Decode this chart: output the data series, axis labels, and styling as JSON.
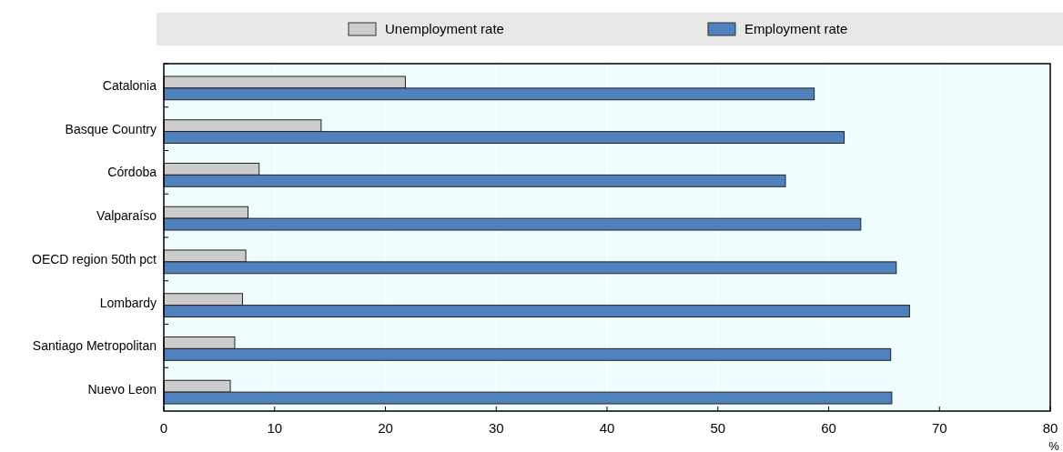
{
  "chart_data": {
    "type": "bar",
    "orientation": "horizontal",
    "xlabel": "%",
    "categories": [
      "Catalonia",
      "Basque Country",
      "Córdoba",
      "Valparaíso",
      "OECD region 50th pct",
      "Lombardy",
      "Santiago Metropolitan",
      "Nuevo Leon"
    ],
    "series": [
      {
        "name": "Unemployment rate",
        "color": "#cccccc",
        "values": [
          21.8,
          14.2,
          8.6,
          7.6,
          7.4,
          7.1,
          6.4,
          6.0
        ]
      },
      {
        "name": "Employment rate",
        "color": "#4f81bd",
        "values": [
          58.7,
          61.4,
          56.1,
          62.9,
          66.1,
          67.3,
          65.6,
          65.7
        ]
      }
    ],
    "xlim": [
      0,
      80
    ],
    "xticks": [
      0,
      10,
      20,
      30,
      40,
      50,
      60,
      70,
      80
    ],
    "grid": "x",
    "legend": "top"
  }
}
